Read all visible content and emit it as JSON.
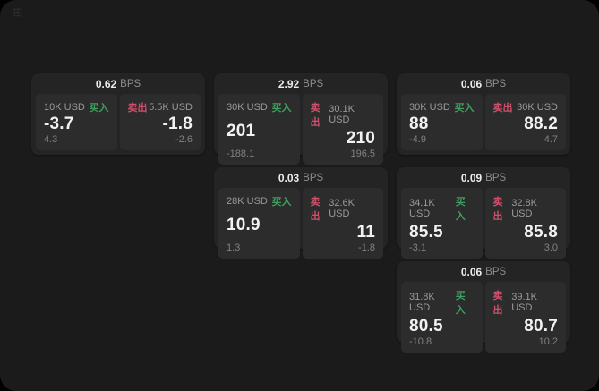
{
  "app": {
    "icon": "grid-app-icon"
  },
  "labels": {
    "buy": "买入",
    "sell": "卖出",
    "bps_unit": "BPS"
  },
  "colors": {
    "buy_green": "#3f9e5f",
    "sell_red": "#d0506b",
    "window_bg": "#1b1b1b",
    "card_bg": "#242424",
    "panel_bg": "#2c2c2c"
  },
  "cards": [
    {
      "row": 1,
      "col": 1,
      "bps": "0.62",
      "buy": {
        "amount": "10K USD",
        "value": "-3.7",
        "delta": "4.3"
      },
      "sell": {
        "amount": "5.5K USD",
        "value": "-1.8",
        "delta": "-2.6"
      }
    },
    {
      "row": 1,
      "col": 2,
      "bps": "2.92",
      "buy": {
        "amount": "30K USD",
        "value": "201",
        "delta": "-188.1"
      },
      "sell": {
        "amount": "30.1K USD",
        "value": "210",
        "delta": "196.5"
      }
    },
    {
      "row": 1,
      "col": 3,
      "bps": "0.06",
      "buy": {
        "amount": "30K USD",
        "value": "88",
        "delta": "-4.9"
      },
      "sell": {
        "amount": "30K USD",
        "value": "88.2",
        "delta": "4.7"
      }
    },
    {
      "row": 2,
      "col": 2,
      "bps": "0.03",
      "buy": {
        "amount": "28K USD",
        "value": "10.9",
        "delta": "1.3"
      },
      "sell": {
        "amount": "32.6K USD",
        "value": "11",
        "delta": "-1.8"
      }
    },
    {
      "row": 2,
      "col": 3,
      "bps": "0.09",
      "buy": {
        "amount": "34.1K USD",
        "value": "85.5",
        "delta": "-3.1"
      },
      "sell": {
        "amount": "32.8K USD",
        "value": "85.8",
        "delta": "3.0"
      }
    },
    {
      "row": 3,
      "col": 3,
      "bps": "0.06",
      "buy": {
        "amount": "31.8K USD",
        "value": "80.5",
        "delta": "-10.8"
      },
      "sell": {
        "amount": "39.1K USD",
        "value": "80.7",
        "delta": "10.2"
      }
    }
  ]
}
